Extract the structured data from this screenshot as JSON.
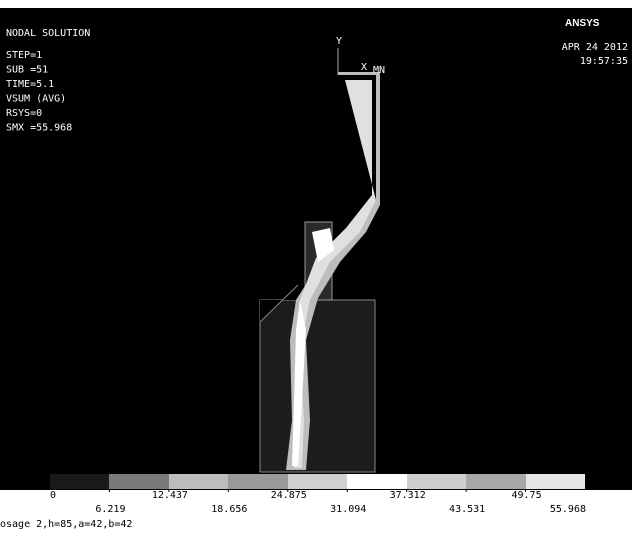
{
  "header": {
    "title": "NODAL SOLUTION",
    "lines": [
      "STEP=1",
      "SUB =51",
      "TIME=5.1",
      "VSUM     (AVG)",
      "RSYS=0",
      "SMX =55.968"
    ]
  },
  "logo": "ANSYS",
  "date": "APR 24 2012",
  "time": "19:57:35",
  "axes": {
    "y": "Y",
    "x": "X",
    "min": "MN"
  },
  "legend": {
    "labels": [
      "0",
      "6.219",
      "12.437",
      "18.656",
      "24.875",
      "31.094",
      "37.312",
      "43.531",
      "49.75",
      "55.968"
    ]
  },
  "caption": "osage 2,h=85,a=42,b=42"
}
